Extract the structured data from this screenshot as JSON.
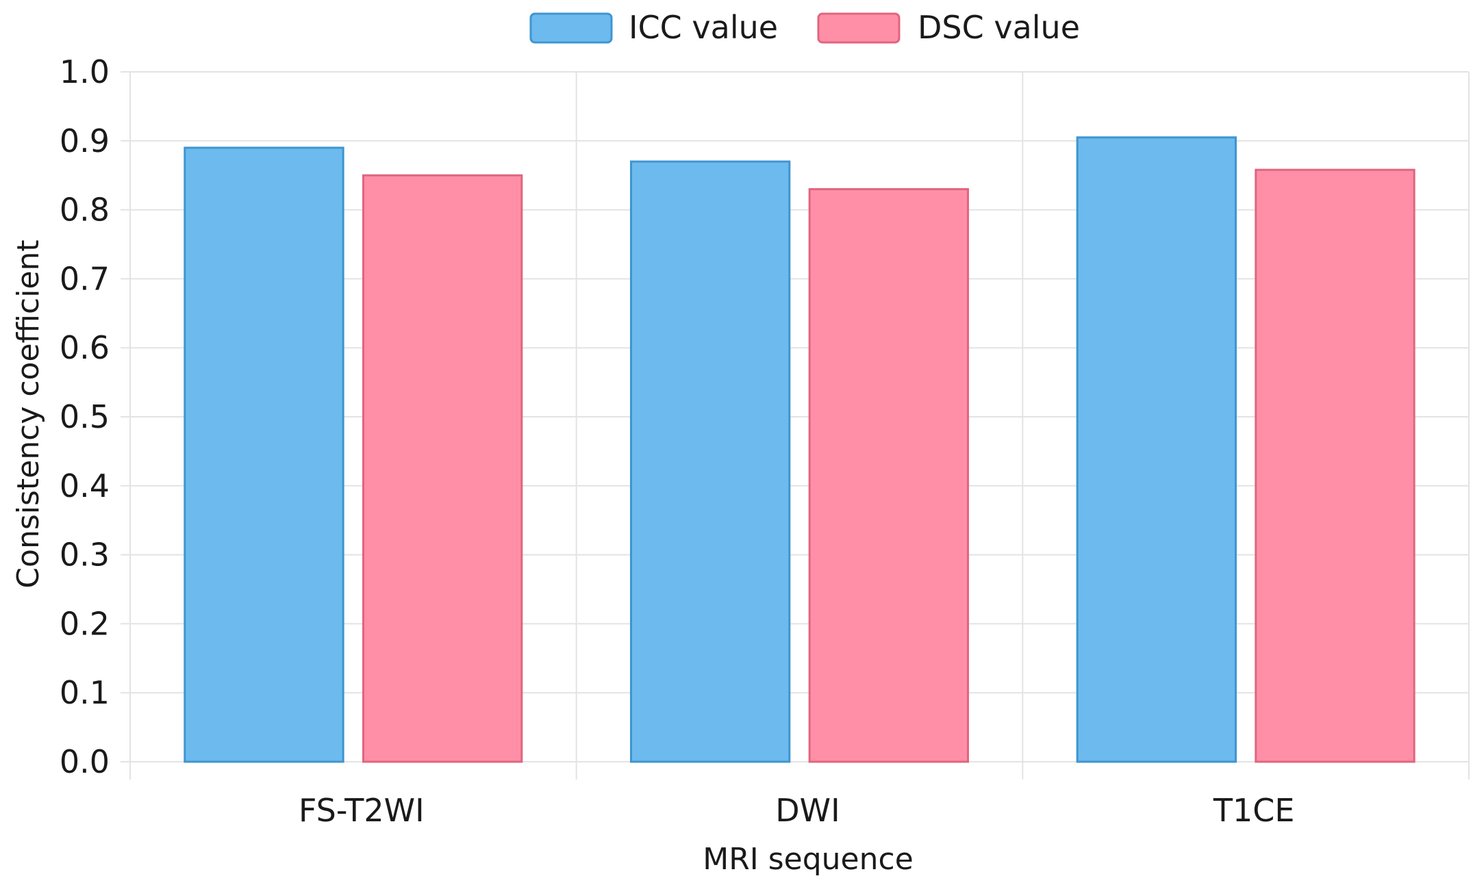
{
  "chart_data": {
    "type": "bar",
    "categories": [
      "FS-T2WI",
      "DWI",
      "T1CE"
    ],
    "series": [
      {
        "name": "ICC value",
        "values": [
          0.89,
          0.87,
          0.905
        ],
        "color": "#6cbaee",
        "stroke": "#3f95cf"
      },
      {
        "name": "DSC value",
        "values": [
          0.85,
          0.83,
          0.858
        ],
        "color": "#ff8fa6",
        "stroke": "#e0657f"
      }
    ],
    "xlabel": "MRI sequence",
    "ylabel": "Consistency coefficient",
    "ylim": [
      0,
      1.0
    ],
    "yticks": [
      "0.0",
      "0.1",
      "0.2",
      "0.3",
      "0.4",
      "0.5",
      "0.6",
      "0.7",
      "0.8",
      "0.9",
      "1.0"
    ],
    "grid": true,
    "legend_position": "top-center"
  },
  "colors": {
    "grid": "#e3e3e3",
    "axis": "#c8c8c8"
  }
}
